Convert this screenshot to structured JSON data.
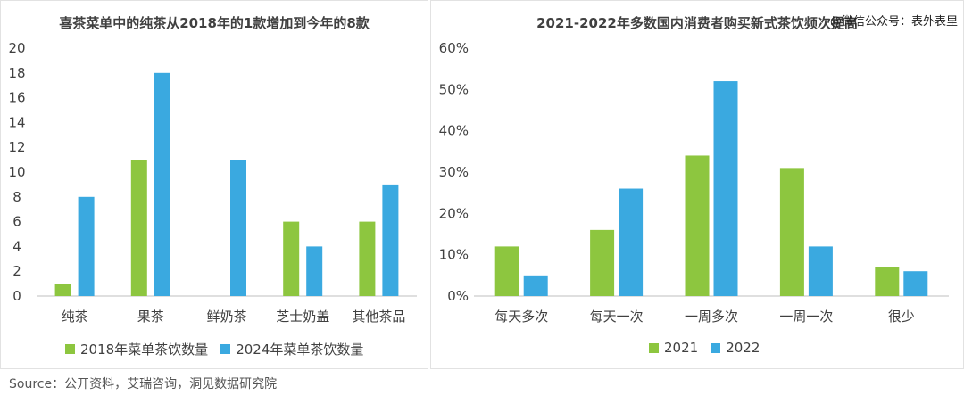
{
  "watermark": "@微信公众号：表外表里",
  "source": "Source：公开资料，艾瑞咨询，洞见数据研究院",
  "colors": {
    "green": "#8dc63f",
    "blue": "#3aa9e0",
    "axis": "#bfbfbf",
    "text": "#404040"
  },
  "chart_data": [
    {
      "type": "bar",
      "title": "喜茶菜单中的纯茶从2018年的1款增加到今年的8款",
      "categories": [
        "纯茶",
        "果茶",
        "鲜奶茶",
        "芝士奶盖",
        "其他茶品"
      ],
      "series": [
        {
          "name": "2018年菜单茶饮数量",
          "values": [
            1,
            11,
            0,
            6,
            6
          ]
        },
        {
          "name": "2024年菜单茶饮数量",
          "values": [
            8,
            18,
            11,
            4,
            9
          ]
        }
      ],
      "ylim": [
        0,
        20
      ],
      "yticks": [
        "0",
        "2",
        "4",
        "6",
        "8",
        "10",
        "12",
        "14",
        "16",
        "18",
        "20"
      ],
      "legend": "bottom"
    },
    {
      "type": "bar",
      "title": "2021-2022年多数国内消费者购买新式茶饮频次提高",
      "categories": [
        "每天多次",
        "每天一次",
        "一周多次",
        "一周一次",
        "很少"
      ],
      "series": [
        {
          "name": "2021",
          "values": [
            12,
            16,
            34,
            31,
            7
          ]
        },
        {
          "name": "2022",
          "values": [
            5,
            26,
            52,
            12,
            6
          ]
        }
      ],
      "ylim": [
        0,
        60
      ],
      "yticks": [
        "0%",
        "10%",
        "20%",
        "30%",
        "40%",
        "50%",
        "60%"
      ],
      "legend": "bottom"
    }
  ]
}
